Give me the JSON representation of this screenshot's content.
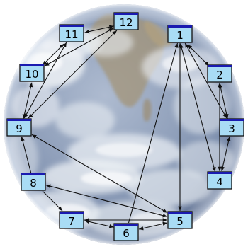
{
  "nodes": [
    {
      "id": "1",
      "label": "1"
    },
    {
      "id": "2",
      "label": "2"
    },
    {
      "id": "3",
      "label": "3"
    },
    {
      "id": "4",
      "label": "4"
    },
    {
      "id": "5",
      "label": "5"
    },
    {
      "id": "6",
      "label": "6"
    },
    {
      "id": "7",
      "label": "7"
    },
    {
      "id": "8",
      "label": "8"
    },
    {
      "id": "9",
      "label": "9"
    },
    {
      "id": "10",
      "label": "10"
    },
    {
      "id": "11",
      "label": "11"
    },
    {
      "id": "12",
      "label": "12"
    }
  ],
  "edges": [
    {
      "from": "1",
      "to": "2",
      "arrows": "both"
    },
    {
      "from": "1",
      "to": "3",
      "arrows": "both"
    },
    {
      "from": "1",
      "to": "4",
      "arrows": "both"
    },
    {
      "from": "1",
      "to": "5",
      "arrows": "both"
    },
    {
      "from": "2",
      "to": "3",
      "arrows": "both"
    },
    {
      "from": "2",
      "to": "4",
      "arrows": "both"
    },
    {
      "from": "3",
      "to": "4",
      "arrows": "both"
    },
    {
      "from": "5",
      "to": "6",
      "arrows": "both"
    },
    {
      "from": "5",
      "to": "7",
      "arrows": "both"
    },
    {
      "from": "5",
      "to": "8",
      "arrows": "both"
    },
    {
      "from": "9",
      "to": "5",
      "arrows": "both"
    },
    {
      "from": "6",
      "to": "1",
      "arrows": "end"
    },
    {
      "from": "6",
      "to": "7",
      "arrows": "both"
    },
    {
      "from": "8",
      "to": "7",
      "arrows": "end"
    },
    {
      "from": "8",
      "to": "9",
      "arrows": "end"
    },
    {
      "from": "9",
      "to": "10",
      "arrows": "both"
    },
    {
      "from": "9",
      "to": "11",
      "arrows": "both"
    },
    {
      "from": "9",
      "to": "12",
      "arrows": "both"
    },
    {
      "from": "10",
      "to": "11",
      "arrows": "both"
    },
    {
      "from": "10",
      "to": "12",
      "arrows": "both"
    },
    {
      "from": "11",
      "to": "12",
      "arrows": "both"
    }
  ],
  "colors": {
    "node_fill": "#a9dcf5",
    "node_top_bar": "#1a1ab0",
    "edge": "#111111",
    "earth_ocean": "#7b8fae",
    "earth_cloud": "#e8edf2",
    "earth_land": "#9c8f78"
  },
  "background": "earth-globe-image"
}
